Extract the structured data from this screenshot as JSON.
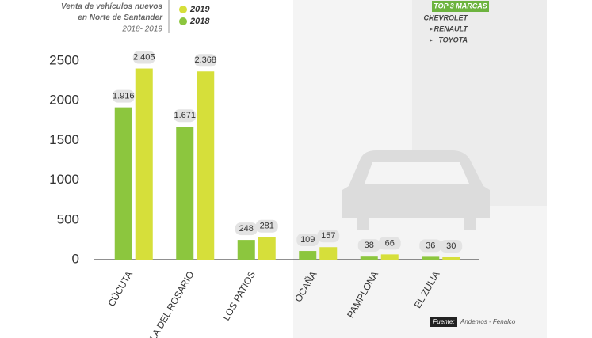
{
  "chart_data": {
    "type": "bar",
    "title": "Venta de vehículos nuevos en Norte de Santander",
    "subtitle": "2018- 2019",
    "categories": [
      "CÚCUTA",
      "VILLA DEL ROSARIO",
      "LOS PATIOS",
      "OCAÑA",
      "PAMPLONA",
      "EL ZULIA"
    ],
    "series": [
      {
        "name": "2018",
        "color": "#8cc63e",
        "values": [
          1916,
          1671,
          248,
          109,
          38,
          36
        ],
        "value_labels": [
          "1.916",
          "1.671",
          "248",
          "109",
          "38",
          "36"
        ]
      },
      {
        "name": "2019",
        "color": "#d6df3a",
        "values": [
          2405,
          2368,
          281,
          157,
          66,
          30
        ],
        "value_labels": [
          "2.405",
          "2.368",
          "281",
          "157",
          "66",
          "30"
        ]
      }
    ],
    "ylim": [
      0,
      2500
    ],
    "yticks": [
      0,
      500,
      1000,
      1500,
      2000,
      2500
    ],
    "grid": false
  },
  "top_brands": {
    "title": "TOP 3 MARCAS",
    "items": [
      "CHEVROLET",
      "RENAULT",
      "TOYOTA"
    ]
  },
  "source": {
    "label": "Fuente:",
    "text": "Andemos - Fenalco"
  }
}
